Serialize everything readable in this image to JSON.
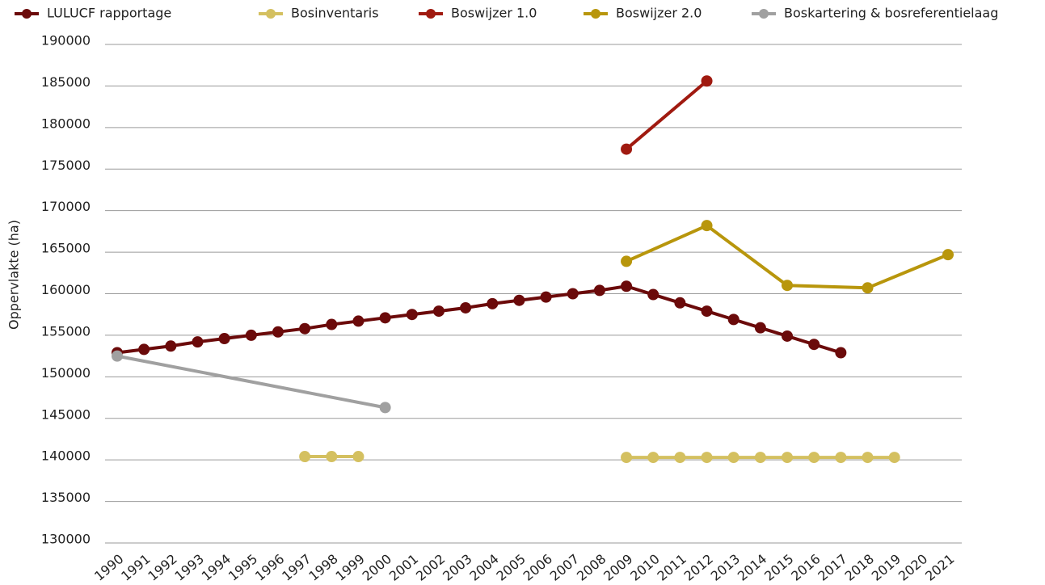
{
  "chart_data": {
    "type": "line",
    "ylabel": "Oppervlakte (ha)",
    "xlim": [
      1990,
      2021
    ],
    "xticks": [
      1990,
      1991,
      1992,
      1993,
      1994,
      1995,
      1996,
      1997,
      1998,
      1999,
      2000,
      2001,
      2002,
      2003,
      2004,
      2005,
      2006,
      2007,
      2008,
      2009,
      2010,
      2011,
      2012,
      2013,
      2014,
      2015,
      2016,
      2017,
      2018,
      2019,
      2020,
      2021
    ],
    "ylim": [
      130000,
      190000
    ],
    "yticks": [
      130000,
      135000,
      140000,
      145000,
      150000,
      155000,
      160000,
      165000,
      170000,
      175000,
      180000,
      185000,
      190000
    ],
    "grid": true,
    "legend": "top",
    "series": [
      {
        "name": "LULUCF rapportage",
        "color": "#6b0a0a",
        "x": [
          1990,
          1991,
          1992,
          1993,
          1994,
          1995,
          1996,
          1997,
          1998,
          1999,
          2000,
          2001,
          2002,
          2003,
          2004,
          2005,
          2006,
          2007,
          2008,
          2009,
          2010,
          2011,
          2012,
          2013,
          2014,
          2015,
          2016,
          2017
        ],
        "values": [
          152900,
          153300,
          153700,
          154200,
          154600,
          155000,
          155400,
          155800,
          156300,
          156700,
          157100,
          157500,
          157900,
          158300,
          158800,
          159200,
          159600,
          160000,
          160400,
          160900,
          159900,
          158900,
          157900,
          156900,
          155900,
          154900,
          153900,
          152900
        ]
      },
      {
        "name": "Bosinventaris",
        "color": "#d4c060",
        "x": [
          1997,
          1998,
          1999,
          2000,
          2009,
          2010,
          2011,
          2012,
          2013,
          2014,
          2015,
          2016,
          2017,
          2018,
          2019
        ],
        "values": [
          140400,
          140400,
          140400,
          null,
          140300,
          140300,
          140300,
          140300,
          140300,
          140300,
          140300,
          140300,
          140300,
          140300,
          140300
        ]
      },
      {
        "name": "Boswijzer 1.0",
        "color": "#a01a10",
        "x": [
          2009,
          2012
        ],
        "values": [
          177400,
          185600
        ]
      },
      {
        "name": "Boswijzer 2.0",
        "color": "#b8960c",
        "x": [
          2009,
          2012,
          2015,
          2018,
          2021
        ],
        "values": [
          163900,
          168200,
          161000,
          160700,
          164700
        ]
      },
      {
        "name": "Boskartering & bosreferentielaag",
        "color": "#a0a0a0",
        "x": [
          1990,
          2000
        ],
        "values": [
          152500,
          146300
        ]
      }
    ]
  }
}
